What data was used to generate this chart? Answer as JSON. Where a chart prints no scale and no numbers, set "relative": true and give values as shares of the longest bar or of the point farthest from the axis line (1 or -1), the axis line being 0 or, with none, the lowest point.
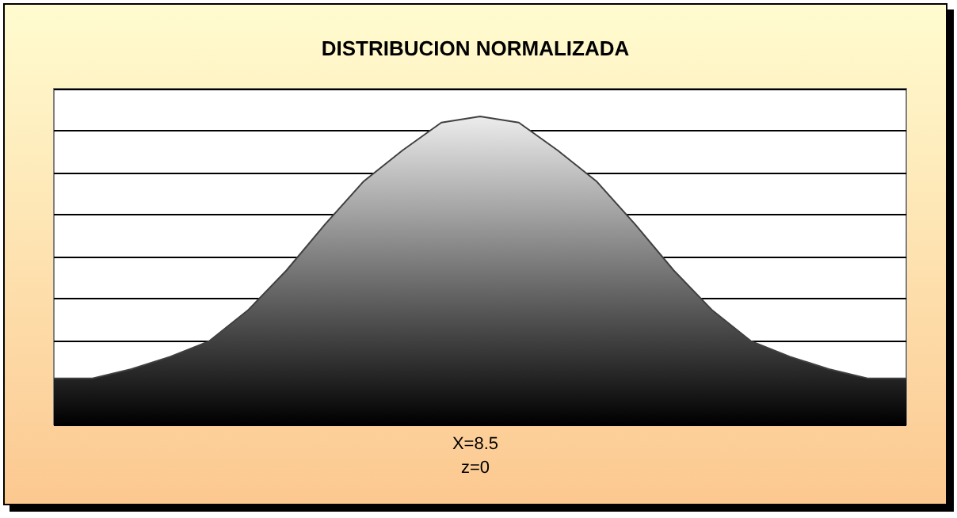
{
  "chart_data": {
    "type": "area",
    "title": "DISTRIBUCION NORMALIZADA",
    "annotations": [
      "X=8.5",
      "z=0"
    ],
    "relative": true,
    "grid": "y",
    "marker": "none",
    "categories": [
      null,
      null,
      null,
      null,
      null,
      null,
      null,
      null,
      null,
      null,
      null,
      null,
      null,
      null,
      null,
      null,
      null,
      null,
      null,
      null,
      null,
      null,
      null
    ],
    "series": [
      {
        "color": "#404040",
        "values": [
          0.15,
          0.15,
          0.18,
          0.22,
          0.27,
          0.37,
          0.5,
          0.65,
          0.79,
          0.89,
          0.98,
          1,
          0.98,
          0.89,
          0.79,
          0.65,
          0.5,
          0.37,
          0.27,
          0.22,
          0.18,
          0.15,
          0.15
        ]
      }
    ]
  }
}
